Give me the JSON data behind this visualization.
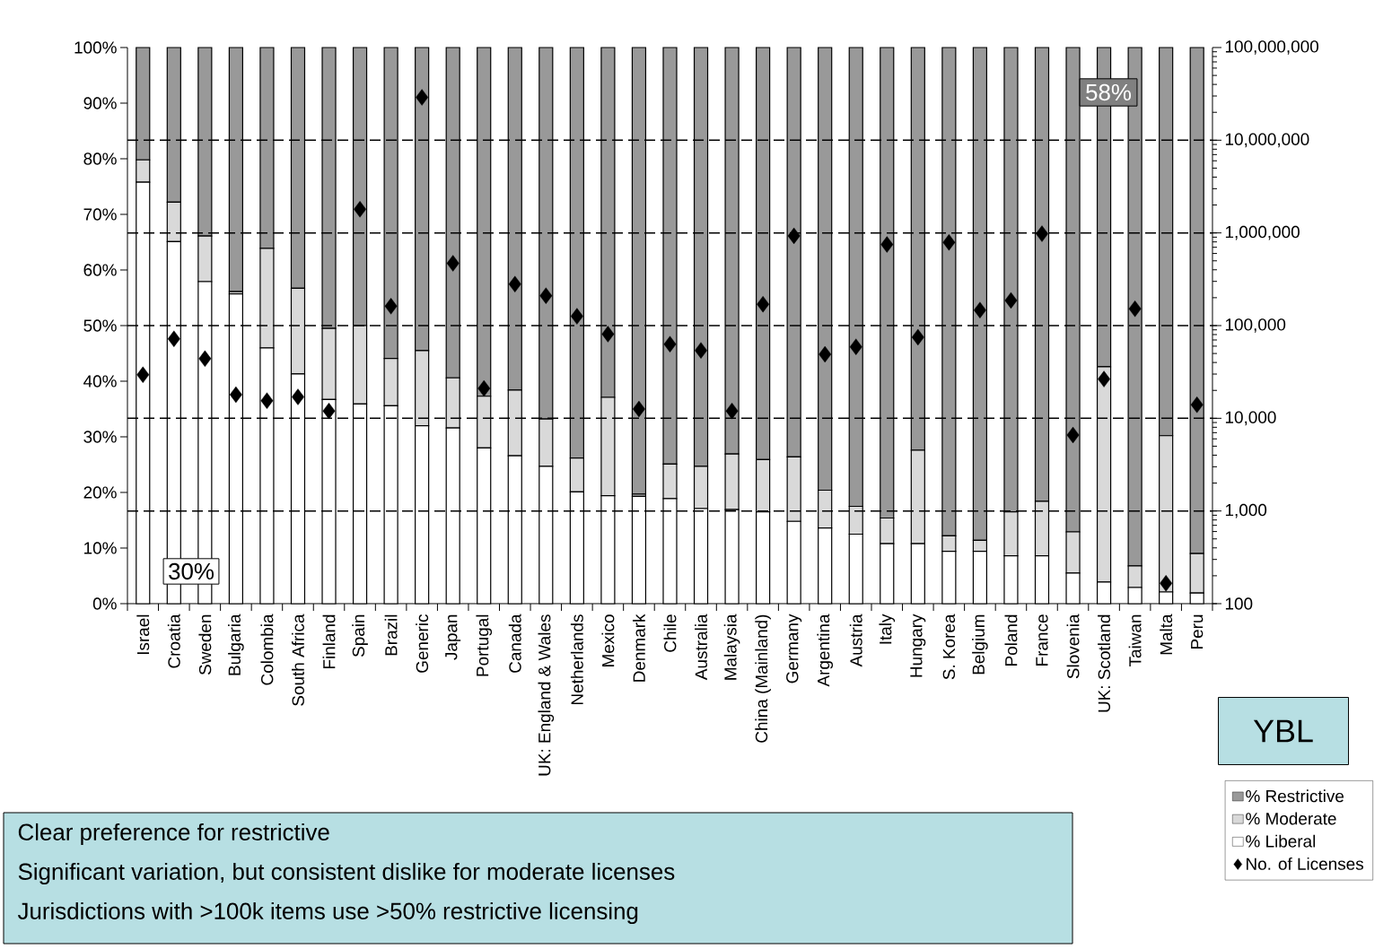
{
  "chart_data": {
    "type": "bar",
    "stacked": true,
    "log": "y2",
    "legend": "bottom right",
    "marker": "diamond",
    "categories": [
      "Israel",
      "Croatia",
      "Sweden",
      "Bulgaria",
      "Colombia",
      "South Africa",
      "Finland",
      "Spain",
      "Brazil",
      "Generic",
      "Japan",
      "Portugal",
      "Canada",
      "UK: England & Wales",
      "Netherlands",
      "Mexico",
      "Denmark",
      "Chile",
      "Australia",
      "Malaysia",
      "China (Mainland)",
      "Germany",
      "Argentina",
      "Austria",
      "Italy",
      "Hungary",
      "S. Korea",
      "Belgium",
      "Poland",
      "France",
      "Slovenia",
      "UK: Scotland",
      "Taiwan",
      "Malta",
      "Peru"
    ],
    "series": [
      {
        "name": "% Liberal",
        "color": "#ffffff",
        "values": [
          75.8,
          65.1,
          57.9,
          55.7,
          46.0,
          41.3,
          36.7,
          35.9,
          35.6,
          32.0,
          31.6,
          28.0,
          26.6,
          24.7,
          20.1,
          19.4,
          19.3,
          18.9,
          17.1,
          16.9,
          16.5,
          14.8,
          13.6,
          12.5,
          10.8,
          10.8,
          9.4,
          9.4,
          8.6,
          8.6,
          5.5,
          3.9,
          2.9,
          2.1,
          1.9
        ]
      },
      {
        "name": "% Moderate",
        "color": "#d9d9d9",
        "values": [
          4.0,
          7.1,
          8.2,
          0.4,
          17.9,
          15.4,
          12.8,
          14.1,
          8.5,
          13.5,
          9.0,
          9.3,
          11.8,
          8.5,
          6.1,
          17.7,
          0.4,
          6.2,
          7.6,
          10.0,
          9.4,
          11.6,
          6.8,
          5.0,
          4.6,
          16.8,
          2.8,
          2.0,
          7.9,
          9.8,
          7.4,
          38.7,
          3.9,
          28.1,
          7.1
        ]
      },
      {
        "name": "% Restrictive",
        "color": "#999999",
        "values": [
          20.2,
          27.8,
          33.9,
          43.9,
          36.1,
          43.3,
          50.5,
          50.0,
          55.9,
          54.5,
          59.4,
          62.7,
          61.6,
          66.8,
          73.8,
          62.9,
          80.3,
          74.9,
          75.3,
          73.1,
          74.1,
          73.6,
          79.6,
          82.5,
          84.6,
          72.4,
          87.8,
          88.6,
          83.5,
          81.6,
          87.1,
          57.4,
          93.2,
          69.8,
          91.0
        ]
      },
      {
        "name": "No. of Licenses",
        "type": "scatter",
        "axis": "y2",
        "color": "#000000",
        "values": [
          29500,
          72000,
          44000,
          18000,
          15500,
          17000,
          12000,
          1800000,
          162000,
          29000000,
          470000,
          21000,
          280000,
          210000,
          126000,
          81000,
          12600,
          63000,
          54000,
          12000,
          170000,
          930000,
          49000,
          59000,
          750000,
          75000,
          790000,
          147000,
          187000,
          980000,
          6600,
          26500,
          152000,
          166,
          14000
        ]
      }
    ],
    "ylim": [
      0,
      100
    ],
    "yticks": [
      {
        "value": 0,
        "label": "0%"
      },
      {
        "value": 10,
        "label": "10%"
      },
      {
        "value": 20,
        "label": "20%"
      },
      {
        "value": 30,
        "label": "30%"
      },
      {
        "value": 40,
        "label": "40%"
      },
      {
        "value": 50,
        "label": "50%"
      },
      {
        "value": 60,
        "label": "60%"
      },
      {
        "value": 70,
        "label": "70%"
      },
      {
        "value": 80,
        "label": "80%"
      },
      {
        "value": 90,
        "label": "90%"
      },
      {
        "value": 100,
        "label": "100%"
      }
    ],
    "y2lim": [
      100,
      100000000
    ],
    "y2ticks": [
      100,
      {
        "value": 1000,
        "label": "1,000"
      },
      {
        "value": 10000,
        "label": "10,000"
      },
      {
        "value": 100000,
        "label": "100,000"
      },
      {
        "value": 1000000,
        "label": "1,000,000"
      },
      {
        "value": 10000000,
        "label": "10,000,000"
      },
      {
        "value": 100000000,
        "label": "100,000,000"
      }
    ],
    "ref_lines": [
      {
        "axis": "y2",
        "value": 1000,
        "line_style": "dashed",
        "color": "#000000"
      },
      {
        "axis": "y2",
        "value": 10000,
        "line_style": "dashed",
        "color": "#000000"
      },
      {
        "axis": "y2",
        "value": 100000,
        "line_style": "dashed",
        "color": "#000000"
      },
      {
        "axis": "y2",
        "value": 1000000,
        "line_style": "dashed",
        "color": "#000000"
      },
      {
        "axis": "y2",
        "value": 10000000,
        "line_style": "dashed",
        "color": "#000000"
      }
    ],
    "annotations": [
      "30%",
      "58%",
      "YBL",
      "Clear preference for restrictive",
      "Significant variation, but consistent dislike for moderate licenses",
      "Jurisdictions with >100k items use >50% restrictive licensing"
    ]
  }
}
